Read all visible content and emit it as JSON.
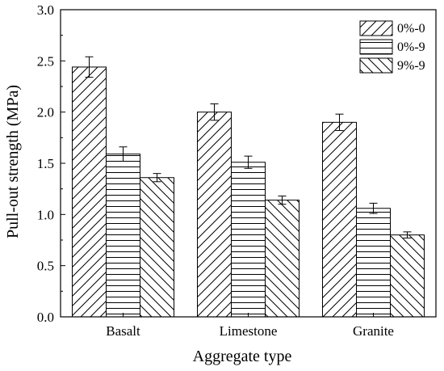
{
  "chart_data": {
    "type": "bar",
    "xlabel": "Aggregate type",
    "ylabel": "Pull-out strength (MPa)",
    "ylim": [
      0,
      3.0
    ],
    "yticks": [
      "0.0",
      "0.5",
      "1.0",
      "1.5",
      "2.0",
      "2.5",
      "3.0"
    ],
    "categories": [
      "Basalt",
      "Limestone",
      "Granite"
    ],
    "series": [
      {
        "name": "0%-0",
        "values": [
          2.44,
          2.0,
          1.9
        ],
        "errors": [
          0.1,
          0.08,
          0.08
        ],
        "pattern": "forward-diagonal"
      },
      {
        "name": "0%-9",
        "values": [
          1.59,
          1.51,
          1.06
        ],
        "errors": [
          0.07,
          0.06,
          0.05
        ],
        "pattern": "horizontal"
      },
      {
        "name": "9%-9",
        "values": [
          1.36,
          1.14,
          0.8
        ],
        "errors": [
          0.04,
          0.04,
          0.03
        ],
        "pattern": "back-diagonal"
      }
    ],
    "legend_position": "top-right",
    "grid": false
  }
}
